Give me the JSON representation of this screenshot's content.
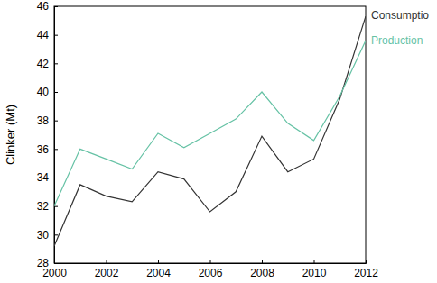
{
  "chart_data": {
    "type": "line",
    "y_label": "Clinker (Mt)",
    "x": [
      2000,
      2001,
      2002,
      2003,
      2004,
      2005,
      2006,
      2007,
      2008,
      2009,
      2010,
      2011,
      2012
    ],
    "series": [
      {
        "name": "Consumptio",
        "color": "#333333",
        "values": [
          29.2,
          33.5,
          32.7,
          32.3,
          34.4,
          33.9,
          31.6,
          33.0,
          36.9,
          34.4,
          35.3,
          39.5,
          45.3
        ]
      },
      {
        "name": "Production",
        "color": "#66c2a5",
        "values": [
          32.0,
          36.0,
          35.3,
          34.6,
          37.1,
          36.1,
          37.1,
          38.1,
          40.0,
          37.8,
          36.6,
          39.7,
          43.6
        ]
      }
    ],
    "xlim": [
      2000,
      2012
    ],
    "xticks": [
      2000,
      2002,
      2004,
      2006,
      2008,
      2010,
      2012
    ],
    "ylim": [
      28,
      46
    ],
    "yticks": [
      28,
      30,
      32,
      34,
      36,
      38,
      40,
      42,
      44,
      46
    ],
    "legend": "right"
  }
}
